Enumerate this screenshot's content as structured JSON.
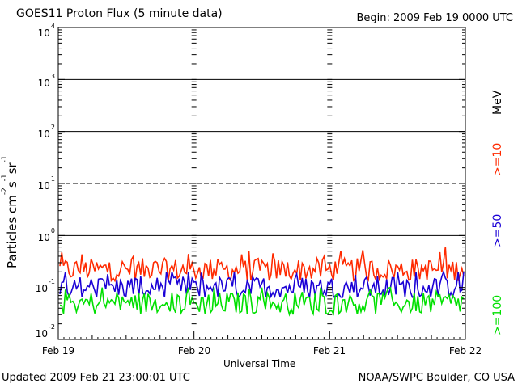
{
  "header": {
    "title": "GOES11 Proton Flux (5 minute data)",
    "begin": "Begin: 2009 Feb 19 0000 UTC"
  },
  "footer": {
    "updated": "Updated 2009 Feb 21 23:00:01 UTC",
    "org": "NOAA/SWPC Boulder, CO USA"
  },
  "colors": {
    "ge10": "#ff2a00",
    "ge50": "#1a00d6",
    "ge100": "#00e000",
    "background": "#ffffff",
    "axes": "#000000"
  },
  "chart_data": {
    "type": "line",
    "title": "GOES11 Proton Flux (5 minute data)",
    "xlabel": "Universal Time",
    "ylabel": "Particles cm-2 s-1 sr-1",
    "yscale": "log",
    "ylim": [
      0.01,
      10000
    ],
    "xlim": [
      "2009-02-19",
      "2009-02-22"
    ],
    "x_ticks": [
      "Feb 19",
      "Feb 20",
      "Feb 21",
      "Feb 22"
    ],
    "y_ticks": [
      {
        "base": "10",
        "exp": "4"
      },
      {
        "base": "10",
        "exp": "3"
      },
      {
        "base": "10",
        "exp": "2"
      },
      {
        "base": "10",
        "exp": "1"
      },
      {
        "base": "10",
        "exp": "0"
      },
      {
        "base": "10",
        "exp": "-1"
      },
      {
        "base": "10",
        "exp": "-2"
      }
    ],
    "reference_lines": [
      {
        "y": 1000,
        "style": "solid"
      },
      {
        "y": 100,
        "style": "solid"
      },
      {
        "y": 10,
        "style": "dashed"
      },
      {
        "y": 1,
        "style": "solid"
      }
    ],
    "unit_label": "MeV",
    "series": [
      {
        "name": ">=10",
        "color": "#ff2a00",
        "typical": 0.22,
        "range": [
          0.13,
          0.6
        ]
      },
      {
        "name": ">=50",
        "color": "#1a00d6",
        "typical": 0.1,
        "range": [
          0.065,
          0.2
        ]
      },
      {
        "name": ">=100",
        "color": "#00e000",
        "typical": 0.05,
        "range": [
          0.028,
          0.1
        ]
      }
    ]
  }
}
